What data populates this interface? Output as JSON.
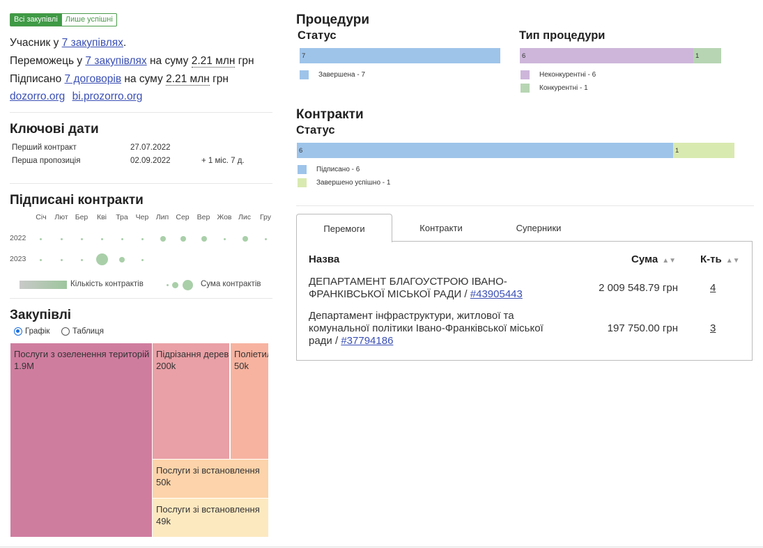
{
  "filter": {
    "all_label": "Всі закупівлі",
    "success_label": "Лише успішні"
  },
  "summary": {
    "participant_prefix": "Учасник у ",
    "participant_link": "7 закупівлях",
    "participant_suffix": ".",
    "winner_prefix": "Переможець у ",
    "winner_link": "7 закупівлях",
    "winner_mid": " на суму ",
    "winner_amount": "2.21 млн",
    "winner_cur": " грн",
    "signed_prefix": "Підписано ",
    "signed_link": "7 договорів",
    "signed_mid": " на суму ",
    "signed_amount": "2.21 млн",
    "signed_cur": " грн"
  },
  "links": {
    "dozorro": "dozorro.org",
    "bi": "bi.prozorro.org"
  },
  "key_dates": {
    "title": "Ключові дати",
    "first_contract_label": "Перший контракт",
    "first_contract_date": "27.07.2022",
    "first_offer_label": "Перша пропозиція",
    "first_offer_date": "02.09.2022",
    "first_offer_diff": "+ 1 міс. 7 д."
  },
  "signed_contracts": {
    "title": "Підписані контракти",
    "months": [
      "Січ",
      "Лют",
      "Бер",
      "Кві",
      "Тра",
      "Чер",
      "Лип",
      "Сер",
      "Вер",
      "Жов",
      "Лис",
      "Гру"
    ],
    "years": [
      "2022",
      "2023"
    ],
    "legend_count": "Кількість контрактів",
    "legend_sum": "Сума контрактів",
    "dot_color": "#a9cfa9"
  },
  "purchases": {
    "title": "Закупівлі",
    "view_graph": "Графік",
    "view_table": "Таблиця",
    "treemap": [
      {
        "label": "Послуги з озеленення територій",
        "value": "1.9M",
        "color": "#cf7d9f"
      },
      {
        "label": "Підрізання дерев",
        "value": "200k",
        "color": "#e9a0a6"
      },
      {
        "label": "Поліетилен",
        "value": "50k",
        "color": "#f7b3a0"
      },
      {
        "label": "Послуги зі встановлення",
        "value": "50k",
        "color": "#fcd3aa"
      },
      {
        "label": "Послуги зі встановлення",
        "value": "49k",
        "color": "#fde9c0"
      }
    ]
  },
  "procedures": {
    "title": "Процедури",
    "status_title": "Статус",
    "status_bar": [
      {
        "label": "7",
        "color": "#9ec4ea"
      }
    ],
    "status_legend": [
      {
        "label": "Завершена - 7",
        "color": "#9ec4ea"
      }
    ],
    "type_title": "Тип процедури",
    "type_bar": [
      {
        "label": "6",
        "color": "#cdb6da"
      },
      {
        "label": "1",
        "color": "#b7d5b3"
      }
    ],
    "type_legend": [
      {
        "label": "Неконкурентні - 6",
        "color": "#cdb6da"
      },
      {
        "label": "Конкурентні - 1",
        "color": "#b7d5b3"
      }
    ]
  },
  "contracts": {
    "title": "Контракти",
    "status_title": "Статус",
    "bar": [
      {
        "label": "6",
        "color": "#9ec4ea"
      },
      {
        "label": "1",
        "color": "#d9eab0"
      }
    ],
    "legend": [
      {
        "label": "Підписано - 6",
        "color": "#9ec4ea"
      },
      {
        "label": "Завершено успішно - 1",
        "color": "#d9eab0"
      }
    ]
  },
  "tabs": [
    "Перемоги",
    "Контракти",
    "Суперники"
  ],
  "table": {
    "col_name": "Назва",
    "col_sum": "Сума",
    "col_count": "К-ть",
    "rows": [
      {
        "name_line1": "ДЕПАРТАМЕНТ БЛАГОУСТРОЮ ІВАНО-",
        "name_line2": "ФРАНКІВСЬКОЇ МІСЬКОЇ РАДИ / ",
        "code": "#43905443",
        "sum": "2 009 548.79 грн",
        "count": "4"
      },
      {
        "name_line1": "Департамент інфраструктури, житлової та",
        "name_line2": "комунальної політики Івано-Франківської міської",
        "name_line3": "ради / ",
        "code": "#37794186",
        "sum": "197 750.00 грн",
        "count": "3"
      }
    ]
  }
}
